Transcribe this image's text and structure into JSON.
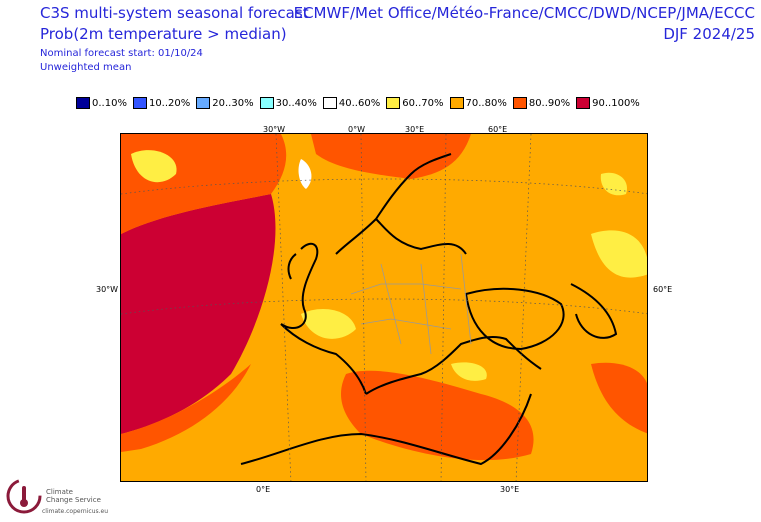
{
  "header": {
    "title_line1": "C3S multi-system seasonal forecast",
    "title_line2": "Prob(2m temperature > median)",
    "nominal_start": "Nominal forecast start: 01/10/24",
    "weighting": "Unweighted mean",
    "centres": "ECMWF/Met Office/Météo-France/CMCC/DWD/NCEP/JMA/ECCC",
    "season": "DJF 2024/25"
  },
  "legend": [
    {
      "label": "0..10%",
      "color": "#000099"
    },
    {
      "label": "10..20%",
      "color": "#3355ff"
    },
    {
      "label": "20..30%",
      "color": "#66aaff"
    },
    {
      "label": "30..40%",
      "color": "#88ffff"
    },
    {
      "label": "40..60%",
      "color": "#ffffff"
    },
    {
      "label": "60..70%",
      "color": "#ffee44"
    },
    {
      "label": "70..80%",
      "color": "#ffaa00"
    },
    {
      "label": "80..90%",
      "color": "#ff5500"
    },
    {
      "label": "90..100%",
      "color": "#cc0033"
    }
  ],
  "map": {
    "lon_labels_top": [
      "30°W",
      "0°W",
      "30°E",
      "60°E"
    ],
    "lon_labels_bottom": [
      "0°E",
      "30°E"
    ],
    "lat_label_left": "30°W",
    "lat_label_right": "60°E",
    "colors": {
      "base": "#ffaa00",
      "high": "#ff5500",
      "veryhigh": "#cc0033",
      "mid": "#ffee44",
      "low": "#ffffff"
    }
  },
  "footer": {
    "logo_line1": "Climate",
    "logo_line2": "Change Service",
    "logo_url": "climate.copernicus.eu"
  }
}
